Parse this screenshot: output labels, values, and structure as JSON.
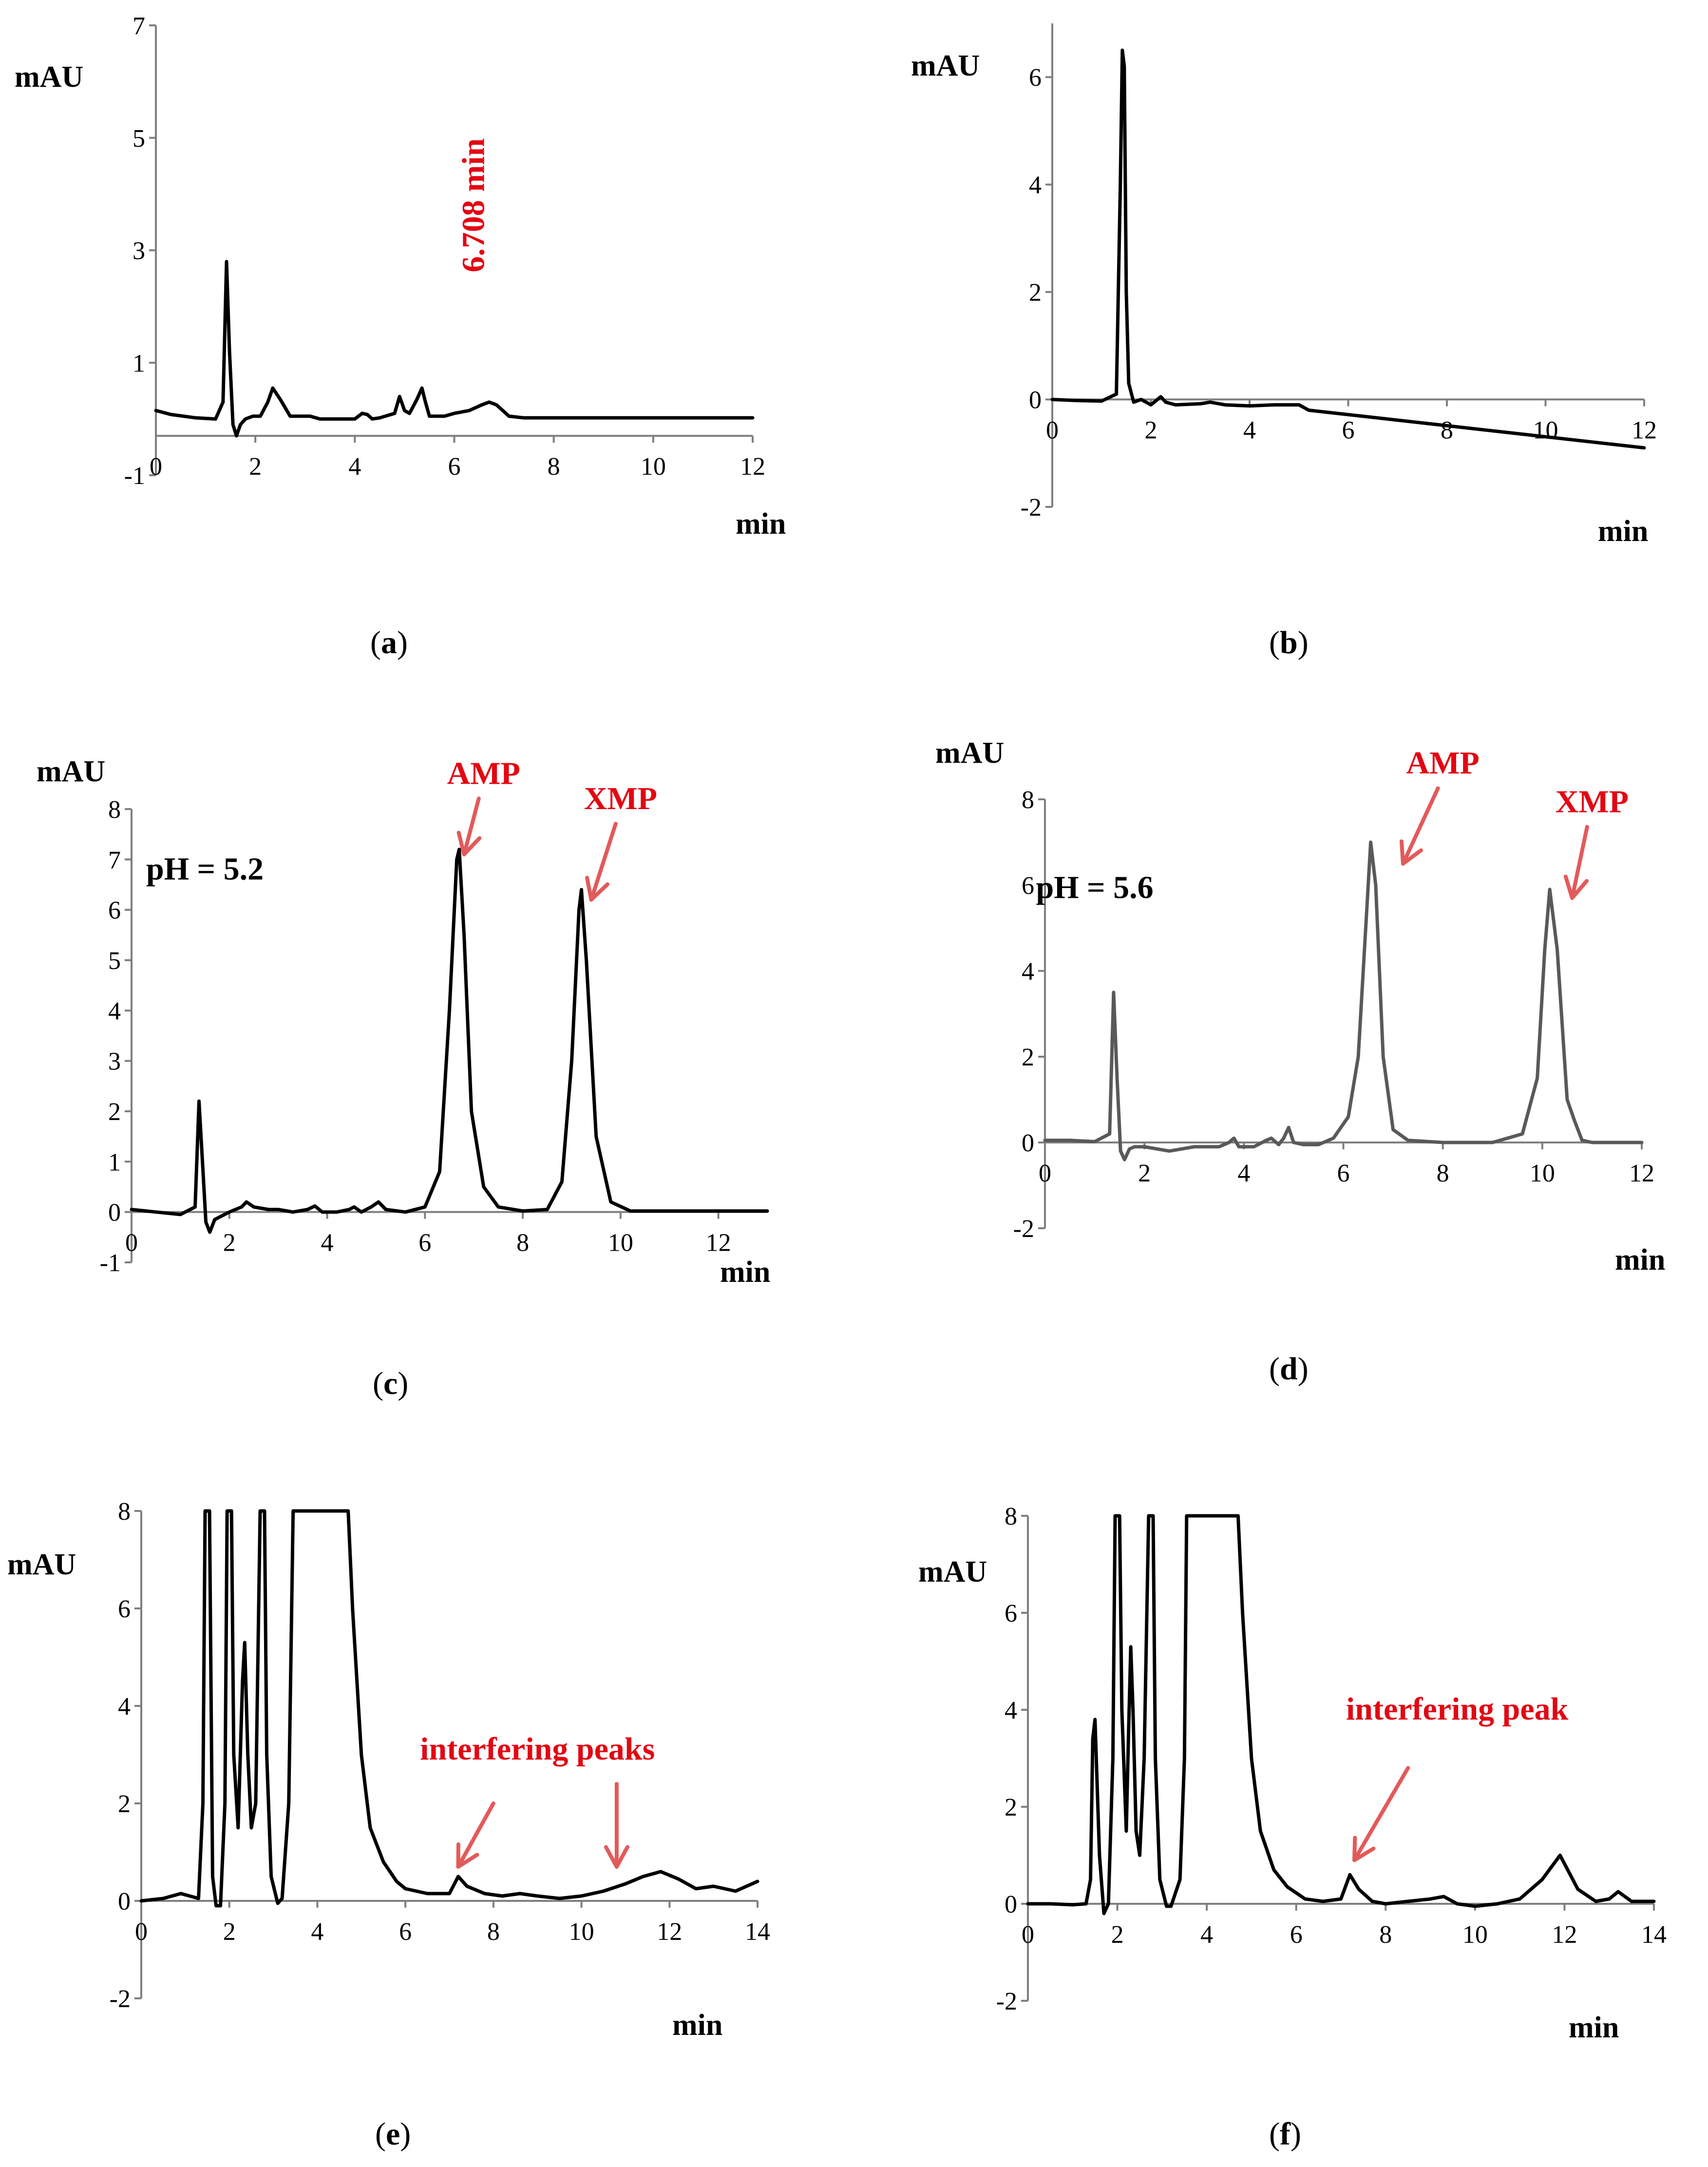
{
  "chart_data": [
    {
      "id": "a",
      "type": "line",
      "panel_label": "a",
      "xlabel": "min",
      "ylabel": "mAU",
      "xlim": [
        0,
        12
      ],
      "ylim": [
        -1,
        7
      ],
      "xticks": [
        0,
        2,
        4,
        6,
        8,
        10,
        12
      ],
      "yticks": [
        -1,
        1,
        3,
        5,
        7
      ],
      "trace_color": "#000000",
      "series": [
        {
          "name": "chromatogram",
          "x": [
            0,
            0.3,
            0.8,
            1.2,
            1.35,
            1.42,
            1.48,
            1.55,
            1.62,
            1.7,
            1.8,
            1.95,
            2.1,
            2.25,
            2.35,
            2.5,
            2.7,
            2.9,
            3.1,
            3.3,
            3.6,
            4.0,
            4.15,
            4.25,
            4.35,
            4.5,
            4.8,
            4.9,
            5.0,
            5.1,
            5.25,
            5.35,
            5.42,
            5.5,
            5.6,
            5.8,
            6.0,
            6.3,
            6.55,
            6.7,
            6.85,
            7.1,
            7.4,
            8.0,
            9.0,
            10.0,
            11.0,
            12.0
          ],
          "y": [
            0.15,
            0.08,
            0.02,
            0.0,
            0.3,
            2.8,
            1.2,
            -0.1,
            -0.3,
            -0.1,
            0.0,
            0.05,
            0.05,
            0.3,
            0.55,
            0.35,
            0.05,
            0.05,
            0.05,
            0.0,
            0.0,
            0.0,
            0.1,
            0.08,
            0.0,
            0.02,
            0.1,
            0.4,
            0.15,
            0.1,
            0.35,
            0.55,
            0.3,
            0.05,
            0.05,
            0.05,
            0.1,
            0.15,
            0.25,
            0.3,
            0.25,
            0.05,
            0.02,
            0.02,
            0.02,
            0.02,
            0.02,
            0.02
          ]
        }
      ],
      "annotations": [
        {
          "text": "6.708 min",
          "color": "#e30613",
          "style": "vertical",
          "x": 6.6,
          "y": 3.8
        }
      ]
    },
    {
      "id": "b",
      "type": "line",
      "panel_label": "b",
      "xlabel": "min",
      "ylabel": "mAU",
      "xlim": [
        0,
        12
      ],
      "ylim": [
        -2,
        7
      ],
      "xticks": [
        0,
        2,
        4,
        6,
        8,
        10,
        12
      ],
      "yticks": [
        -2,
        0,
        2,
        4,
        6
      ],
      "trace_color": "#000000",
      "series": [
        {
          "name": "chromatogram",
          "x": [
            0,
            0.5,
            1.0,
            1.3,
            1.38,
            1.42,
            1.46,
            1.5,
            1.55,
            1.65,
            1.8,
            2.0,
            2.2,
            2.3,
            2.5,
            3.0,
            3.2,
            3.5,
            4.0,
            4.5,
            5.0,
            5.2,
            12.0
          ],
          "y": [
            0.0,
            -0.02,
            -0.03,
            0.1,
            4.0,
            6.5,
            6.2,
            2.0,
            0.3,
            -0.05,
            0.0,
            -0.1,
            0.05,
            -0.05,
            -0.1,
            -0.08,
            -0.05,
            -0.1,
            -0.12,
            -0.1,
            -0.1,
            -0.2,
            -0.9
          ]
        }
      ],
      "annotations": []
    },
    {
      "id": "c",
      "type": "line",
      "panel_label": "c",
      "xlabel": "min",
      "ylabel": "mAU",
      "xlim": [
        0,
        13
      ],
      "ylim": [
        -1,
        8
      ],
      "xticks": [
        0,
        2,
        4,
        6,
        8,
        10,
        12
      ],
      "yticks": [
        -1,
        0,
        1,
        2,
        3,
        4,
        5,
        6,
        7,
        8
      ],
      "trace_color": "#000000",
      "series": [
        {
          "name": "chromatogram",
          "x": [
            0,
            0.5,
            1.0,
            1.3,
            1.38,
            1.45,
            1.52,
            1.6,
            1.7,
            1.8,
            2.0,
            2.25,
            2.35,
            2.5,
            2.8,
            3.0,
            3.3,
            3.6,
            3.75,
            3.9,
            4.2,
            4.45,
            4.55,
            4.7,
            4.9,
            5.05,
            5.2,
            5.6,
            6.0,
            6.3,
            6.5,
            6.65,
            6.7,
            6.8,
            6.95,
            7.2,
            7.5,
            8.0,
            8.5,
            8.8,
            9.0,
            9.15,
            9.2,
            9.3,
            9.5,
            9.8,
            10.2,
            11.0,
            12.0,
            13.0
          ],
          "y": [
            0.05,
            0.0,
            -0.05,
            0.1,
            2.2,
            1.0,
            -0.2,
            -0.4,
            -0.15,
            -0.1,
            0.0,
            0.1,
            0.2,
            0.1,
            0.05,
            0.05,
            0.0,
            0.05,
            0.12,
            0.0,
            0.0,
            0.05,
            0.1,
            0.0,
            0.1,
            0.2,
            0.05,
            0.0,
            0.1,
            0.8,
            4.0,
            7.0,
            7.2,
            5.5,
            2.0,
            0.5,
            0.1,
            0.02,
            0.05,
            0.6,
            3.0,
            6.0,
            6.4,
            5.0,
            1.5,
            0.2,
            0.02,
            0.02,
            0.02,
            0.02
          ]
        }
      ],
      "annotations": [
        {
          "text": "pH = 5.2",
          "color": "#000000",
          "x": 1.5,
          "y": 6.6
        },
        {
          "text": "AMP",
          "color": "#e30613",
          "x": 7.2,
          "y": 8.5,
          "arrow_to": [
            6.8,
            7.1
          ]
        },
        {
          "text": "XMP",
          "color": "#e30613",
          "x": 10.0,
          "y": 8.0,
          "arrow_to": [
            9.4,
            6.2
          ]
        }
      ]
    },
    {
      "id": "d",
      "type": "line",
      "panel_label": "d",
      "xlabel": "min",
      "ylabel": "mAU",
      "xlim": [
        0,
        12
      ],
      "ylim": [
        -2,
        8
      ],
      "xticks": [
        0,
        2,
        4,
        6,
        8,
        10,
        12
      ],
      "yticks": [
        -2,
        0,
        2,
        4,
        6,
        8
      ],
      "trace_color": "#595959",
      "series": [
        {
          "name": "chromatogram",
          "x": [
            0,
            0.5,
            1.0,
            1.3,
            1.38,
            1.45,
            1.52,
            1.6,
            1.7,
            1.8,
            2.0,
            2.5,
            3.0,
            3.5,
            3.7,
            3.8,
            3.9,
            4.2,
            4.45,
            4.55,
            4.7,
            4.8,
            4.9,
            5.0,
            5.2,
            5.5,
            5.8,
            6.1,
            6.3,
            6.45,
            6.55,
            6.65,
            6.8,
            7.0,
            7.3,
            8.0,
            9.0,
            9.6,
            9.9,
            10.05,
            10.15,
            10.3,
            10.5,
            10.65,
            10.8,
            11.0,
            12.0
          ],
          "y": [
            0.05,
            0.05,
            0.02,
            0.2,
            3.5,
            1.5,
            -0.2,
            -0.4,
            -0.15,
            -0.1,
            -0.1,
            -0.2,
            -0.1,
            -0.1,
            0.0,
            0.1,
            -0.1,
            -0.1,
            0.05,
            0.1,
            -0.05,
            0.1,
            0.35,
            0.0,
            -0.05,
            -0.05,
            0.1,
            0.6,
            2.0,
            5.0,
            7.0,
            6.0,
            2.0,
            0.3,
            0.05,
            0.0,
            0.0,
            0.2,
            1.5,
            4.5,
            5.9,
            4.5,
            1.0,
            0.5,
            0.05,
            0.0,
            0.0
          ]
        }
      ],
      "annotations": [
        {
          "text": "pH = 5.6",
          "color": "#000000",
          "x": 1.0,
          "y": 5.7
        },
        {
          "text": "AMP",
          "color": "#e30613",
          "x": 8.0,
          "y": 8.6,
          "arrow_to": [
            7.2,
            6.5
          ]
        },
        {
          "text": "XMP",
          "color": "#e30613",
          "x": 11.0,
          "y": 7.7,
          "arrow_to": [
            10.6,
            5.7
          ]
        }
      ]
    },
    {
      "id": "e",
      "type": "line",
      "panel_label": "e",
      "xlabel": "min",
      "ylabel": "mAU",
      "xlim": [
        0,
        14
      ],
      "ylim": [
        -2,
        8
      ],
      "xticks": [
        0,
        2,
        4,
        6,
        8,
        10,
        12,
        14
      ],
      "yticks": [
        -2,
        0,
        2,
        4,
        6,
        8
      ],
      "trace_color": "#000000",
      "series": [
        {
          "name": "chromatogram",
          "x": [
            0,
            0.5,
            0.9,
            1.1,
            1.3,
            1.4,
            1.45,
            1.55,
            1.62,
            1.7,
            1.8,
            1.9,
            1.95,
            2.05,
            2.1,
            2.2,
            2.3,
            2.35,
            2.42,
            2.5,
            2.6,
            2.7,
            2.8,
            2.85,
            2.95,
            3.1,
            3.2,
            3.35,
            3.45,
            3.5,
            4.7,
            4.8,
            5.0,
            5.2,
            5.5,
            5.8,
            6.0,
            6.5,
            7.0,
            7.2,
            7.4,
            7.8,
            8.2,
            8.6,
            9.0,
            9.5,
            10.0,
            10.5,
            11.0,
            11.4,
            11.8,
            12.2,
            12.6,
            13.0,
            13.5,
            14.0
          ],
          "y": [
            0.0,
            0.05,
            0.15,
            0.1,
            0.05,
            2.0,
            8.0,
            8.0,
            0.5,
            -0.1,
            -0.1,
            2.0,
            8.0,
            8.0,
            3.0,
            1.5,
            4.5,
            5.3,
            3.0,
            1.5,
            2.0,
            8.0,
            8.0,
            3.0,
            0.5,
            -0.05,
            0.05,
            2.0,
            8.0,
            8.0,
            8.0,
            6.0,
            3.0,
            1.5,
            0.8,
            0.4,
            0.25,
            0.15,
            0.15,
            0.5,
            0.3,
            0.15,
            0.1,
            0.15,
            0.1,
            0.05,
            0.1,
            0.2,
            0.35,
            0.5,
            0.6,
            0.45,
            0.25,
            0.3,
            0.2,
            0.4
          ]
        }
      ],
      "annotations": [
        {
          "text": "interfering peaks",
          "color": "#e30613",
          "x": 9.0,
          "y": 2.9
        },
        {
          "arrow_from": [
            8.0,
            2.0
          ],
          "arrow_to": [
            7.2,
            0.7
          ],
          "color": "#e30613"
        },
        {
          "arrow_from": [
            10.8,
            2.4
          ],
          "arrow_to": [
            10.8,
            0.7
          ],
          "color": "#e30613"
        }
      ]
    },
    {
      "id": "f",
      "type": "line",
      "panel_label": "f",
      "xlabel": "min",
      "ylabel": "mAU",
      "xlim": [
        0,
        14
      ],
      "ylim": [
        -2,
        8
      ],
      "xticks": [
        0,
        2,
        4,
        6,
        8,
        10,
        12,
        14
      ],
      "yticks": [
        -2,
        0,
        2,
        4,
        6,
        8
      ],
      "trace_color": "#000000",
      "series": [
        {
          "name": "chromatogram",
          "x": [
            0,
            0.5,
            1.0,
            1.3,
            1.4,
            1.45,
            1.5,
            1.6,
            1.7,
            1.8,
            1.9,
            1.95,
            2.05,
            2.1,
            2.2,
            2.25,
            2.3,
            2.35,
            2.42,
            2.5,
            2.6,
            2.7,
            2.8,
            2.85,
            2.95,
            3.1,
            3.2,
            3.4,
            3.5,
            3.55,
            4.7,
            4.8,
            5.0,
            5.2,
            5.5,
            5.8,
            6.2,
            6.6,
            7.0,
            7.2,
            7.4,
            7.7,
            8.0,
            8.5,
            9.0,
            9.3,
            9.6,
            10.0,
            10.5,
            11.0,
            11.5,
            11.9,
            12.3,
            12.7,
            13.0,
            13.2,
            13.5,
            14.0
          ],
          "y": [
            0.0,
            0.0,
            -0.02,
            0.0,
            0.5,
            3.4,
            3.8,
            1.0,
            -0.2,
            0.0,
            3.0,
            8.0,
            8.0,
            4.0,
            1.5,
            3.5,
            5.3,
            4.0,
            1.5,
            1.0,
            3.0,
            8.0,
            8.0,
            3.0,
            0.5,
            -0.05,
            -0.05,
            0.5,
            3.0,
            8.0,
            8.0,
            6.0,
            3.0,
            1.5,
            0.7,
            0.35,
            0.1,
            0.05,
            0.1,
            0.6,
            0.3,
            0.05,
            0.0,
            0.05,
            0.1,
            0.15,
            0.0,
            -0.05,
            0.0,
            0.1,
            0.5,
            1.0,
            0.3,
            0.05,
            0.1,
            0.25,
            0.05,
            0.05
          ]
        }
      ],
      "annotations": [
        {
          "text": "interfering peak",
          "color": "#e30613",
          "x": 9.6,
          "y": 3.8
        },
        {
          "arrow_from": [
            8.5,
            2.8
          ],
          "arrow_to": [
            7.3,
            0.9
          ],
          "color": "#e30613"
        }
      ]
    }
  ]
}
